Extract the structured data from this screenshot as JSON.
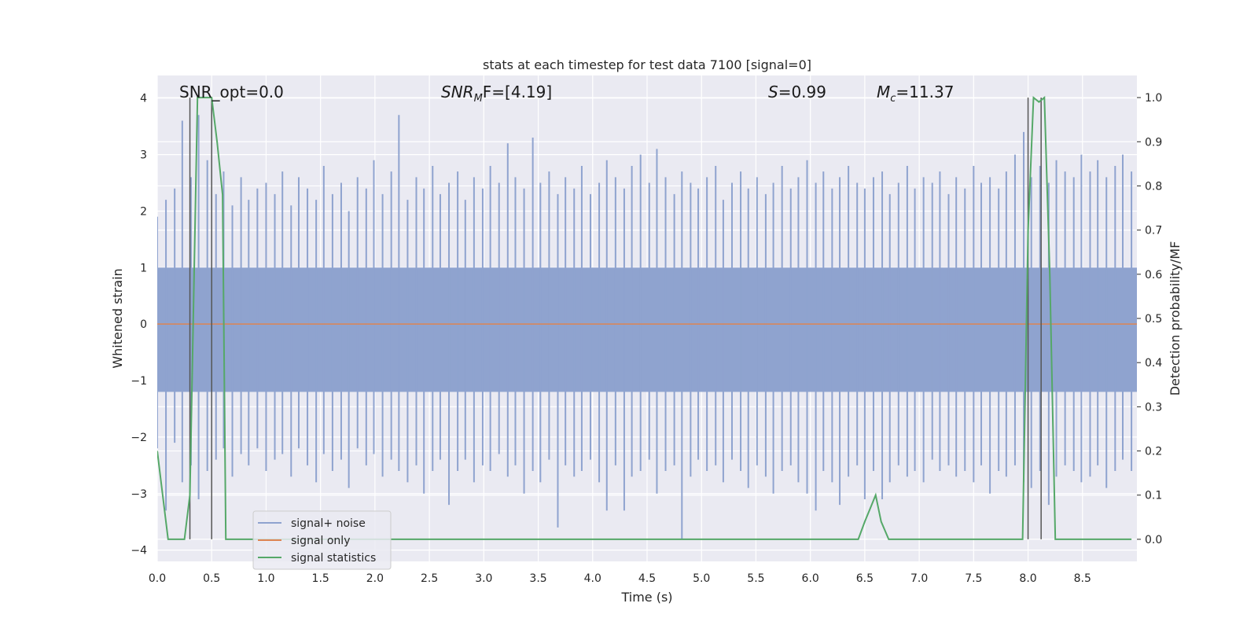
{
  "chart_data": {
    "type": "line",
    "title": "stats at each timestep for test data 7100 [signal=0]",
    "xlabel": "Time (s)",
    "ylabel": "Whitened strain",
    "y2label": "Detection probability/MF",
    "xlim": [
      0.0,
      9.0
    ],
    "ylim": [
      -4.2,
      4.4
    ],
    "y2lim": [
      -0.05,
      1.05
    ],
    "xticks": [
      0.0,
      0.5,
      1.0,
      1.5,
      2.0,
      2.5,
      3.0,
      3.5,
      4.0,
      4.5,
      5.0,
      5.5,
      6.0,
      6.5,
      7.0,
      7.5,
      8.0,
      8.5
    ],
    "xtick_labels": [
      "0.0",
      "0.5",
      "1.0",
      "1.5",
      "2.0",
      "2.5",
      "3.0",
      "3.5",
      "4.0",
      "4.5",
      "5.0",
      "5.5",
      "6.0",
      "6.5",
      "7.0",
      "7.5",
      "8.0",
      "8.5"
    ],
    "yticks": [
      -4,
      -3,
      -2,
      -1,
      0,
      1,
      2,
      3,
      4
    ],
    "ytick_labels": [
      "−4",
      "−3",
      "−2",
      "−1",
      "0",
      "1",
      "2",
      "3",
      "4"
    ],
    "y2ticks": [
      0.0,
      0.1,
      0.2,
      0.3,
      0.4,
      0.5,
      0.6,
      0.7,
      0.8,
      0.9,
      1.0
    ],
    "y2tick_labels": [
      "0.0",
      "0.1",
      "0.2",
      "0.3",
      "0.4",
      "0.5",
      "0.6",
      "0.7",
      "0.8",
      "0.9",
      "1.0"
    ],
    "annotations": {
      "snr_opt": "SNR_opt=0.0",
      "snr_mf_name": "SNR",
      "snr_mf_sub": "M",
      "snr_mf_rest": "F=[4.19]",
      "s_name": "S",
      "s_rest": "=0.99",
      "mc_name": "M",
      "mc_sub": "c",
      "mc_rest": "=11.37"
    },
    "legend": {
      "position": "lower-left",
      "entries": [
        {
          "label": "signal+ noise",
          "color": "#8fa3cf"
        },
        {
          "label": "signal only",
          "color": "#dd8452"
        },
        {
          "label": "signal statistics",
          "color": "#55a868"
        }
      ]
    },
    "series": [
      {
        "name": "signal+ noise",
        "axis": "left",
        "color": "#8fa3cf",
        "x": [
          0.0,
          0.08,
          0.16,
          0.23,
          0.31,
          0.38,
          0.46,
          0.54,
          0.61,
          0.69,
          0.77,
          0.84,
          0.92,
          1.0,
          1.08,
          1.15,
          1.23,
          1.3,
          1.38,
          1.46,
          1.53,
          1.61,
          1.69,
          1.76,
          1.84,
          1.92,
          1.99,
          2.07,
          2.15,
          2.22,
          2.3,
          2.38,
          2.45,
          2.53,
          2.6,
          2.68,
          2.76,
          2.83,
          2.91,
          2.99,
          3.06,
          3.14,
          3.22,
          3.29,
          3.37,
          3.45,
          3.52,
          3.6,
          3.68,
          3.75,
          3.83,
          3.9,
          3.98,
          4.06,
          4.13,
          4.21,
          4.29,
          4.36,
          4.44,
          4.52,
          4.59,
          4.67,
          4.75,
          4.82,
          4.9,
          4.97,
          5.05,
          5.13,
          5.2,
          5.28,
          5.36,
          5.43,
          5.51,
          5.59,
          5.66,
          5.74,
          5.82,
          5.89,
          5.97,
          6.05,
          6.12,
          6.2,
          6.27,
          6.35,
          6.43,
          6.5,
          6.58,
          6.66,
          6.73,
          6.81,
          6.89,
          6.96,
          7.04,
          7.12,
          7.19,
          7.27,
          7.34,
          7.42,
          7.5,
          7.57,
          7.65,
          7.73,
          7.8,
          7.88,
          7.96,
          8.03,
          8.11,
          8.19,
          8.26,
          8.34,
          8.42,
          8.49,
          8.57,
          8.64,
          8.72,
          8.8,
          8.87,
          8.95
        ],
        "upper": [
          1.9,
          2.2,
          2.4,
          3.6,
          2.6,
          3.7,
          2.9,
          2.3,
          2.7,
          2.1,
          2.6,
          2.2,
          2.4,
          2.5,
          2.3,
          2.7,
          2.1,
          2.6,
          2.4,
          2.2,
          2.8,
          2.3,
          2.5,
          2.0,
          2.6,
          2.4,
          2.9,
          2.3,
          2.7,
          3.7,
          2.2,
          2.6,
          2.4,
          2.8,
          2.3,
          2.5,
          2.7,
          2.2,
          2.6,
          2.4,
          2.8,
          2.5,
          3.2,
          2.6,
          2.4,
          3.3,
          2.5,
          2.7,
          2.3,
          2.6,
          2.4,
          2.8,
          2.3,
          2.5,
          2.9,
          2.6,
          2.4,
          2.8,
          3.0,
          2.5,
          3.1,
          2.6,
          2.3,
          2.7,
          2.5,
          2.4,
          2.6,
          2.8,
          2.2,
          2.5,
          2.7,
          2.4,
          2.6,
          2.3,
          2.5,
          2.8,
          2.4,
          2.6,
          2.9,
          2.5,
          2.7,
          2.4,
          2.6,
          2.8,
          2.5,
          2.4,
          2.6,
          2.7,
          2.3,
          2.5,
          2.8,
          2.4,
          2.6,
          2.5,
          2.7,
          2.3,
          2.6,
          2.4,
          2.8,
          2.5,
          2.6,
          2.4,
          2.7,
          3.0,
          3.4,
          2.6,
          2.8,
          2.5,
          2.9,
          2.7,
          2.6,
          3.0,
          2.7,
          2.9,
          2.6,
          2.8,
          3.0,
          2.7
        ],
        "lower": [
          -2.2,
          -3.3,
          -2.1,
          -2.8,
          -2.5,
          -3.1,
          -2.6,
          -2.4,
          -2.2,
          -2.7,
          -2.3,
          -2.5,
          -2.2,
          -2.6,
          -2.4,
          -2.3,
          -2.7,
          -2.2,
          -2.5,
          -2.8,
          -2.3,
          -2.6,
          -2.4,
          -2.9,
          -2.2,
          -2.5,
          -2.3,
          -2.7,
          -2.4,
          -2.6,
          -2.8,
          -2.5,
          -3.0,
          -2.6,
          -2.4,
          -3.2,
          -2.6,
          -2.4,
          -2.8,
          -2.5,
          -2.6,
          -2.3,
          -2.7,
          -2.5,
          -3.0,
          -2.6,
          -2.8,
          -2.4,
          -3.6,
          -2.5,
          -2.7,
          -2.6,
          -2.4,
          -2.8,
          -3.3,
          -2.5,
          -3.3,
          -2.7,
          -2.6,
          -2.4,
          -3.0,
          -2.6,
          -2.5,
          -3.8,
          -2.7,
          -2.4,
          -2.6,
          -2.5,
          -2.8,
          -2.4,
          -2.6,
          -2.9,
          -2.5,
          -2.7,
          -3.0,
          -2.6,
          -2.5,
          -2.8,
          -3.0,
          -3.3,
          -2.6,
          -2.8,
          -3.2,
          -2.7,
          -2.5,
          -3.1,
          -2.6,
          -3.1,
          -2.8,
          -2.5,
          -2.7,
          -2.6,
          -2.8,
          -2.4,
          -2.6,
          -2.5,
          -2.7,
          -2.6,
          -2.8,
          -2.5,
          -3.0,
          -2.6,
          -2.7,
          -2.5,
          -2.8,
          -2.9,
          -2.6,
          -3.2,
          -2.7,
          -2.5,
          -2.6,
          -2.8,
          -2.7,
          -2.5,
          -2.9,
          -2.6,
          -2.4,
          -2.6
        ]
      },
      {
        "name": "signal only",
        "axis": "left",
        "color": "#dd8452",
        "x": [
          0.0,
          9.0
        ],
        "y": [
          0.0,
          0.0
        ]
      },
      {
        "name": "signal statistics",
        "axis": "right",
        "color": "#55a868",
        "x": [
          0.0,
          0.05,
          0.1,
          0.25,
          0.3,
          0.37,
          0.42,
          0.45,
          0.5,
          0.55,
          0.6,
          0.63,
          6.44,
          6.5,
          6.55,
          6.6,
          6.65,
          6.72,
          6.8,
          6.9,
          7.0,
          7.5,
          7.9,
          7.95,
          8.0,
          8.05,
          8.1,
          8.15,
          8.2,
          8.25,
          8.5,
          8.7,
          8.95
        ],
        "y": [
          0.2,
          0.1,
          0.0,
          0.0,
          0.1,
          1.0,
          1.0,
          1.0,
          1.0,
          0.9,
          0.78,
          0.0,
          0.0,
          0.04,
          0.07,
          0.1,
          0.04,
          0.0,
          0.0,
          0.0,
          0.0,
          0.0,
          0.0,
          0.0,
          0.7,
          1.0,
          0.99,
          1.0,
          0.6,
          0.0,
          0.0,
          0.0,
          0.0
        ]
      }
    ],
    "vlines": [
      0.3,
      0.5,
      8.0,
      8.12
    ]
  }
}
